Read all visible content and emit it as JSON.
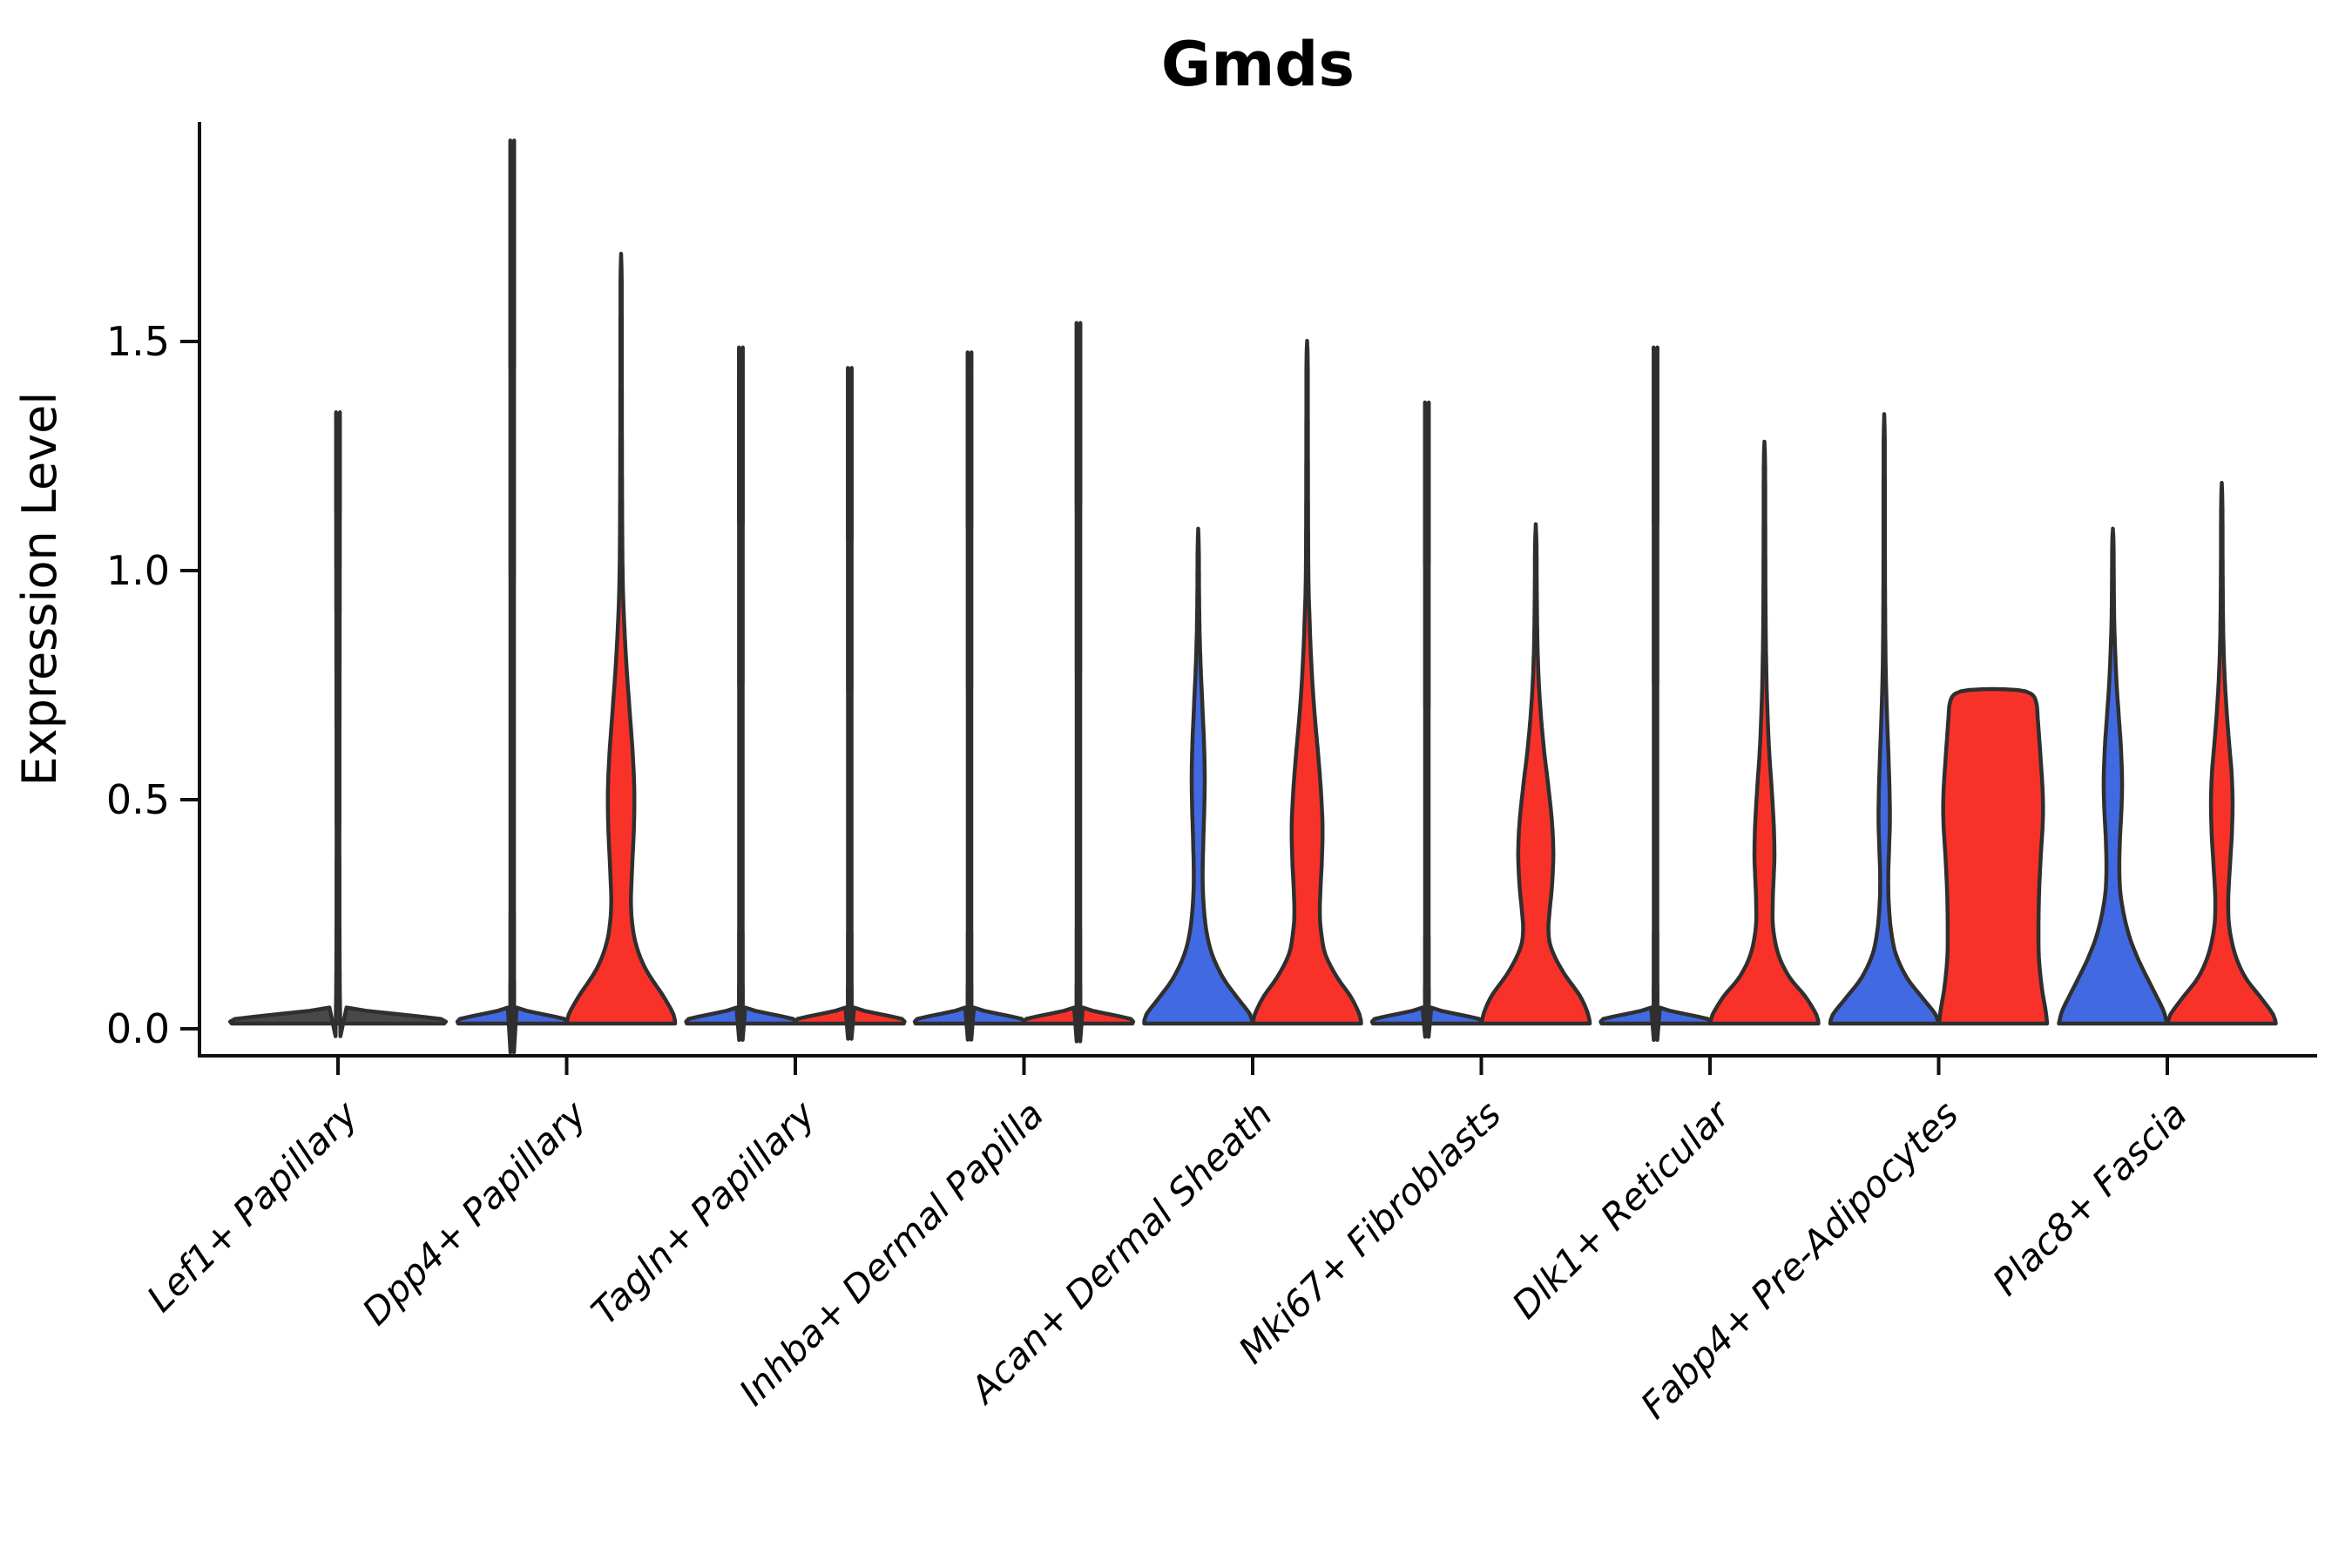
{
  "chart_data": {
    "type": "violin",
    "title": "Gmds",
    "ylabel": "Expression Level",
    "ytick_labels": [
      "0.0",
      "0.5",
      "1.0",
      "1.5"
    ],
    "ytick_values": [
      0.0,
      0.5,
      1.0,
      1.5
    ],
    "ylim": [
      -0.07,
      1.97
    ],
    "legend": "none",
    "grid": false,
    "categories": [
      "Lef1+ Papillary",
      "Dpp4+ Papillary",
      "Tagln+ Papillary",
      "Inhba+ Dermal Papilla",
      "Acan+ Dermal Sheath",
      "Mki67+ Fibroblasts",
      "Dlk1+ Reticular",
      "Fabp4+ Pre-Adipocytes",
      "Plac8+ Fascia"
    ],
    "colors": {
      "blue": "#4169e1",
      "red": "#f93229",
      "dark": "#484848",
      "outline": "#2f2f2f"
    },
    "violins": [
      {
        "category_index": 0,
        "category": "Lef1+ Papillary",
        "side": "single",
        "color": "dark",
        "kind": "collapsed",
        "max": 1.31
      },
      {
        "category_index": 1,
        "category": "Dpp4+ Papillary",
        "side": "left",
        "color": "blue",
        "kind": "collapsed",
        "max": 1.87
      },
      {
        "category_index": 1,
        "category": "Dpp4+ Papillary",
        "side": "right",
        "color": "red",
        "kind": "shaped",
        "max": 1.68,
        "profile": [
          [
            0,
            1
          ],
          [
            0.02,
            0.97
          ],
          [
            0.06,
            0.78
          ],
          [
            0.12,
            0.45
          ],
          [
            0.18,
            0.26
          ],
          [
            0.25,
            0.185
          ],
          [
            0.33,
            0.2
          ],
          [
            0.42,
            0.235
          ],
          [
            0.5,
            0.245
          ],
          [
            0.58,
            0.22
          ],
          [
            0.68,
            0.16
          ],
          [
            0.78,
            0.1
          ],
          [
            0.88,
            0.055
          ],
          [
            0.97,
            0.03
          ],
          [
            1.1,
            0.02
          ],
          [
            1.3,
            0.015
          ],
          [
            1.55,
            0.012
          ],
          [
            1.63,
            0.01
          ],
          [
            1.68,
            0
          ]
        ]
      },
      {
        "category_index": 2,
        "category": "Tagln+ Papillary",
        "side": "left",
        "color": "blue",
        "kind": "collapsed",
        "max": 1.44
      },
      {
        "category_index": 2,
        "category": "Tagln+ Papillary",
        "side": "right",
        "color": "red",
        "kind": "collapsed",
        "max": 1.4
      },
      {
        "category_index": 3,
        "category": "Inhba+ Dermal Papilla",
        "side": "left",
        "color": "blue",
        "kind": "collapsed",
        "max": 1.43
      },
      {
        "category_index": 3,
        "category": "Inhba+ Dermal Papilla",
        "side": "right",
        "color": "red",
        "kind": "collapsed",
        "max": 1.49
      },
      {
        "category_index": 4,
        "category": "Acan+ Dermal Sheath",
        "side": "left",
        "color": "blue",
        "kind": "shaped",
        "max": 1.08,
        "profile": [
          [
            0,
            1
          ],
          [
            0.02,
            0.96
          ],
          [
            0.06,
            0.7
          ],
          [
            0.1,
            0.46
          ],
          [
            0.15,
            0.26
          ],
          [
            0.2,
            0.155
          ],
          [
            0.26,
            0.1
          ],
          [
            0.32,
            0.082
          ],
          [
            0.4,
            0.095
          ],
          [
            0.48,
            0.115
          ],
          [
            0.55,
            0.12
          ],
          [
            0.62,
            0.105
          ],
          [
            0.7,
            0.075
          ],
          [
            0.78,
            0.045
          ],
          [
            0.86,
            0.025
          ],
          [
            0.95,
            0.015
          ],
          [
            1.03,
            0.012
          ],
          [
            1.08,
            0
          ]
        ]
      },
      {
        "category_index": 4,
        "category": "Acan+ Dermal Sheath",
        "side": "right",
        "color": "red",
        "kind": "shaped",
        "max": 1.49,
        "profile": [
          [
            0,
            1
          ],
          [
            0.02,
            0.97
          ],
          [
            0.06,
            0.8
          ],
          [
            0.1,
            0.56
          ],
          [
            0.15,
            0.34
          ],
          [
            0.2,
            0.26
          ],
          [
            0.24,
            0.235
          ],
          [
            0.3,
            0.25
          ],
          [
            0.36,
            0.275
          ],
          [
            0.43,
            0.285
          ],
          [
            0.5,
            0.26
          ],
          [
            0.58,
            0.21
          ],
          [
            0.66,
            0.15
          ],
          [
            0.74,
            0.1
          ],
          [
            0.82,
            0.065
          ],
          [
            0.9,
            0.04
          ],
          [
            0.97,
            0.025
          ],
          [
            1.1,
            0.018
          ],
          [
            1.3,
            0.014
          ],
          [
            1.44,
            0.012
          ],
          [
            1.49,
            0
          ]
        ]
      },
      {
        "category_index": 5,
        "category": "Mki67+ Fibroblasts",
        "side": "left",
        "color": "blue",
        "kind": "collapsed",
        "max": 1.33
      },
      {
        "category_index": 5,
        "category": "Mki67+ Fibroblasts",
        "side": "right",
        "color": "red",
        "kind": "shaped",
        "max": 1.09,
        "profile": [
          [
            0,
            1
          ],
          [
            0.02,
            0.97
          ],
          [
            0.06,
            0.82
          ],
          [
            0.11,
            0.52
          ],
          [
            0.16,
            0.3
          ],
          [
            0.2,
            0.235
          ],
          [
            0.25,
            0.26
          ],
          [
            0.3,
            0.3
          ],
          [
            0.37,
            0.325
          ],
          [
            0.44,
            0.3
          ],
          [
            0.52,
            0.23
          ],
          [
            0.6,
            0.15
          ],
          [
            0.68,
            0.09
          ],
          [
            0.76,
            0.05
          ],
          [
            0.85,
            0.028
          ],
          [
            0.95,
            0.018
          ],
          [
            1.04,
            0.014
          ],
          [
            1.09,
            0
          ]
        ]
      },
      {
        "category_index": 6,
        "category": "Dlk1+ Reticular",
        "side": "left",
        "color": "blue",
        "kind": "collapsed",
        "max": 1.44
      },
      {
        "category_index": 6,
        "category": "Dlk1+ Reticular",
        "side": "right",
        "color": "red",
        "kind": "shaped",
        "max": 1.27,
        "profile": [
          [
            0,
            1
          ],
          [
            0.02,
            0.96
          ],
          [
            0.06,
            0.75
          ],
          [
            0.1,
            0.47
          ],
          [
            0.15,
            0.26
          ],
          [
            0.21,
            0.16
          ],
          [
            0.27,
            0.155
          ],
          [
            0.33,
            0.175
          ],
          [
            0.37,
            0.185
          ],
          [
            0.44,
            0.17
          ],
          [
            0.52,
            0.13
          ],
          [
            0.6,
            0.085
          ],
          [
            0.7,
            0.05
          ],
          [
            0.8,
            0.03
          ],
          [
            0.92,
            0.02
          ],
          [
            1.1,
            0.015
          ],
          [
            1.22,
            0.012
          ],
          [
            1.27,
            0
          ]
        ]
      },
      {
        "category_index": 7,
        "category": "Fabp4+ Pre-Adipocytes",
        "side": "left",
        "color": "blue",
        "kind": "shaped",
        "max": 1.33,
        "profile": [
          [
            0,
            1
          ],
          [
            0.02,
            0.95
          ],
          [
            0.06,
            0.68
          ],
          [
            0.1,
            0.42
          ],
          [
            0.15,
            0.22
          ],
          [
            0.2,
            0.13
          ],
          [
            0.26,
            0.085
          ],
          [
            0.32,
            0.075
          ],
          [
            0.38,
            0.09
          ],
          [
            0.44,
            0.105
          ],
          [
            0.5,
            0.1
          ],
          [
            0.58,
            0.08
          ],
          [
            0.66,
            0.055
          ],
          [
            0.75,
            0.032
          ],
          [
            0.85,
            0.02
          ],
          [
            1.0,
            0.014
          ],
          [
            1.2,
            0.012
          ],
          [
            1.28,
            0.01
          ],
          [
            1.33,
            0
          ]
        ]
      },
      {
        "category_index": 7,
        "category": "Fabp4+ Pre-Adipocytes",
        "side": "right",
        "color": "red",
        "kind": "shaped",
        "max": 0.73,
        "profile": [
          [
            0,
            1
          ],
          [
            0.03,
            0.97
          ],
          [
            0.08,
            0.9
          ],
          [
            0.14,
            0.85
          ],
          [
            0.2,
            0.84
          ],
          [
            0.28,
            0.85
          ],
          [
            0.36,
            0.88
          ],
          [
            0.44,
            0.92
          ],
          [
            0.5,
            0.92
          ],
          [
            0.56,
            0.89
          ],
          [
            0.62,
            0.855
          ],
          [
            0.66,
            0.83
          ],
          [
            0.7,
            0.8
          ],
          [
            0.72,
            0.7
          ],
          [
            0.728,
            0.45
          ],
          [
            0.73,
            0
          ]
        ]
      },
      {
        "category_index": 8,
        "category": "Plac8+ Fascia",
        "side": "left",
        "color": "blue",
        "kind": "shaped",
        "max": 1.08,
        "profile": [
          [
            0,
            1
          ],
          [
            0.03,
            0.93
          ],
          [
            0.08,
            0.72
          ],
          [
            0.14,
            0.47
          ],
          [
            0.2,
            0.28
          ],
          [
            0.27,
            0.155
          ],
          [
            0.33,
            0.12
          ],
          [
            0.4,
            0.13
          ],
          [
            0.47,
            0.16
          ],
          [
            0.53,
            0.17
          ],
          [
            0.6,
            0.15
          ],
          [
            0.67,
            0.11
          ],
          [
            0.74,
            0.07
          ],
          [
            0.82,
            0.04
          ],
          [
            0.9,
            0.022
          ],
          [
            1.0,
            0.015
          ],
          [
            1.05,
            0.012
          ],
          [
            1.08,
            0
          ]
        ]
      },
      {
        "category_index": 8,
        "category": "Plac8+ Fascia",
        "side": "right",
        "color": "red",
        "kind": "shaped",
        "max": 1.18,
        "profile": [
          [
            0,
            1
          ],
          [
            0.02,
            0.95
          ],
          [
            0.06,
            0.7
          ],
          [
            0.1,
            0.44
          ],
          [
            0.15,
            0.25
          ],
          [
            0.21,
            0.14
          ],
          [
            0.27,
            0.12
          ],
          [
            0.34,
            0.15
          ],
          [
            0.41,
            0.185
          ],
          [
            0.48,
            0.2
          ],
          [
            0.55,
            0.18
          ],
          [
            0.62,
            0.13
          ],
          [
            0.7,
            0.08
          ],
          [
            0.78,
            0.045
          ],
          [
            0.87,
            0.025
          ],
          [
            1.0,
            0.016
          ],
          [
            1.13,
            0.012
          ],
          [
            1.18,
            0
          ]
        ]
      }
    ]
  }
}
